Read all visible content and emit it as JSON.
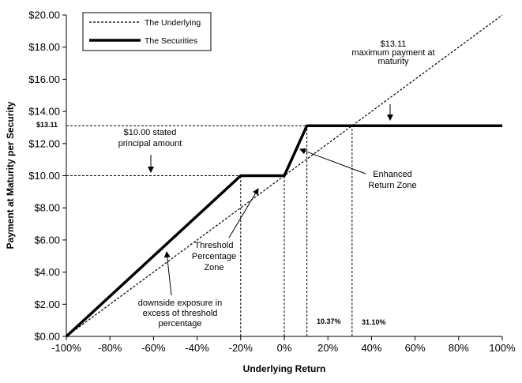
{
  "chart_data": {
    "type": "line",
    "xlabel": "Underlying Return",
    "ylabel": "Payment at Maturity per Security",
    "xlim": [
      -100,
      100
    ],
    "ylim": [
      0,
      20
    ],
    "x_ticks": [
      -100,
      -80,
      -60,
      -40,
      -20,
      0,
      20,
      40,
      60,
      80,
      100
    ],
    "x_tick_labels": [
      "-100%",
      "-80%",
      "-60%",
      "-40%",
      "-20%",
      "0%",
      "20%",
      "40%",
      "60%",
      "80%",
      "100%"
    ],
    "y_ticks": [
      0,
      2,
      4,
      6,
      8,
      10,
      12,
      14,
      16,
      18,
      20
    ],
    "y_tick_labels": [
      "$0.00",
      "$2.00",
      "$4.00",
      "$6.00",
      "$8.00",
      "$10.00",
      "$12.00",
      "$14.00",
      "$16.00",
      "$18.00",
      "$20.00"
    ],
    "legend": {
      "placement": "top-left",
      "items": [
        {
          "name": "The Underlying",
          "style": "dashed"
        },
        {
          "name": "The Securities",
          "style": "solid-thick"
        }
      ]
    },
    "series": [
      {
        "name": "The Underlying",
        "style": "dashed",
        "x": [
          -100,
          100
        ],
        "y": [
          0,
          20
        ]
      },
      {
        "name": "The Securities",
        "style": "solid-thick",
        "x": [
          -100,
          -20,
          0,
          10.37,
          100
        ],
        "y": [
          0,
          10,
          10,
          13.11,
          13.11
        ]
      }
    ],
    "reference_lines": [
      {
        "kind": "horizontal",
        "y": 13.11,
        "x_from": -100,
        "x_to": 31.1
      },
      {
        "kind": "horizontal",
        "y": 10,
        "x_from": -100,
        "x_to": -20
      },
      {
        "kind": "vertical",
        "x": -20,
        "y_from": 0,
        "y_to": 10
      },
      {
        "kind": "vertical",
        "x": 0,
        "y_from": 0,
        "y_to": 10
      },
      {
        "kind": "vertical",
        "x": 10.37,
        "y_from": 0,
        "y_to": 13.11
      },
      {
        "kind": "vertical",
        "x": 31.1,
        "y_from": 0,
        "y_to": 13.11
      }
    ],
    "y_marker_label": "$13.11",
    "annotations": [
      {
        "id": "max-payment",
        "lines": [
          "$13.11",
          "maximum payment at",
          "maturity"
        ]
      },
      {
        "id": "stated-principal",
        "lines": [
          "$10.00 stated",
          "principal amount"
        ]
      },
      {
        "id": "enhanced-zone",
        "lines": [
          "Enhanced",
          "Return Zone"
        ]
      },
      {
        "id": "threshold-zone",
        "lines": [
          "Threshold",
          "Percentage",
          "Zone"
        ]
      },
      {
        "id": "downside",
        "lines": [
          "downside exposure in",
          "excess of threshold",
          "percentage"
        ]
      },
      {
        "id": "pct-1037",
        "lines": [
          "10.37%"
        ]
      },
      {
        "id": "pct-3110",
        "lines": [
          "31.10%"
        ]
      }
    ]
  }
}
